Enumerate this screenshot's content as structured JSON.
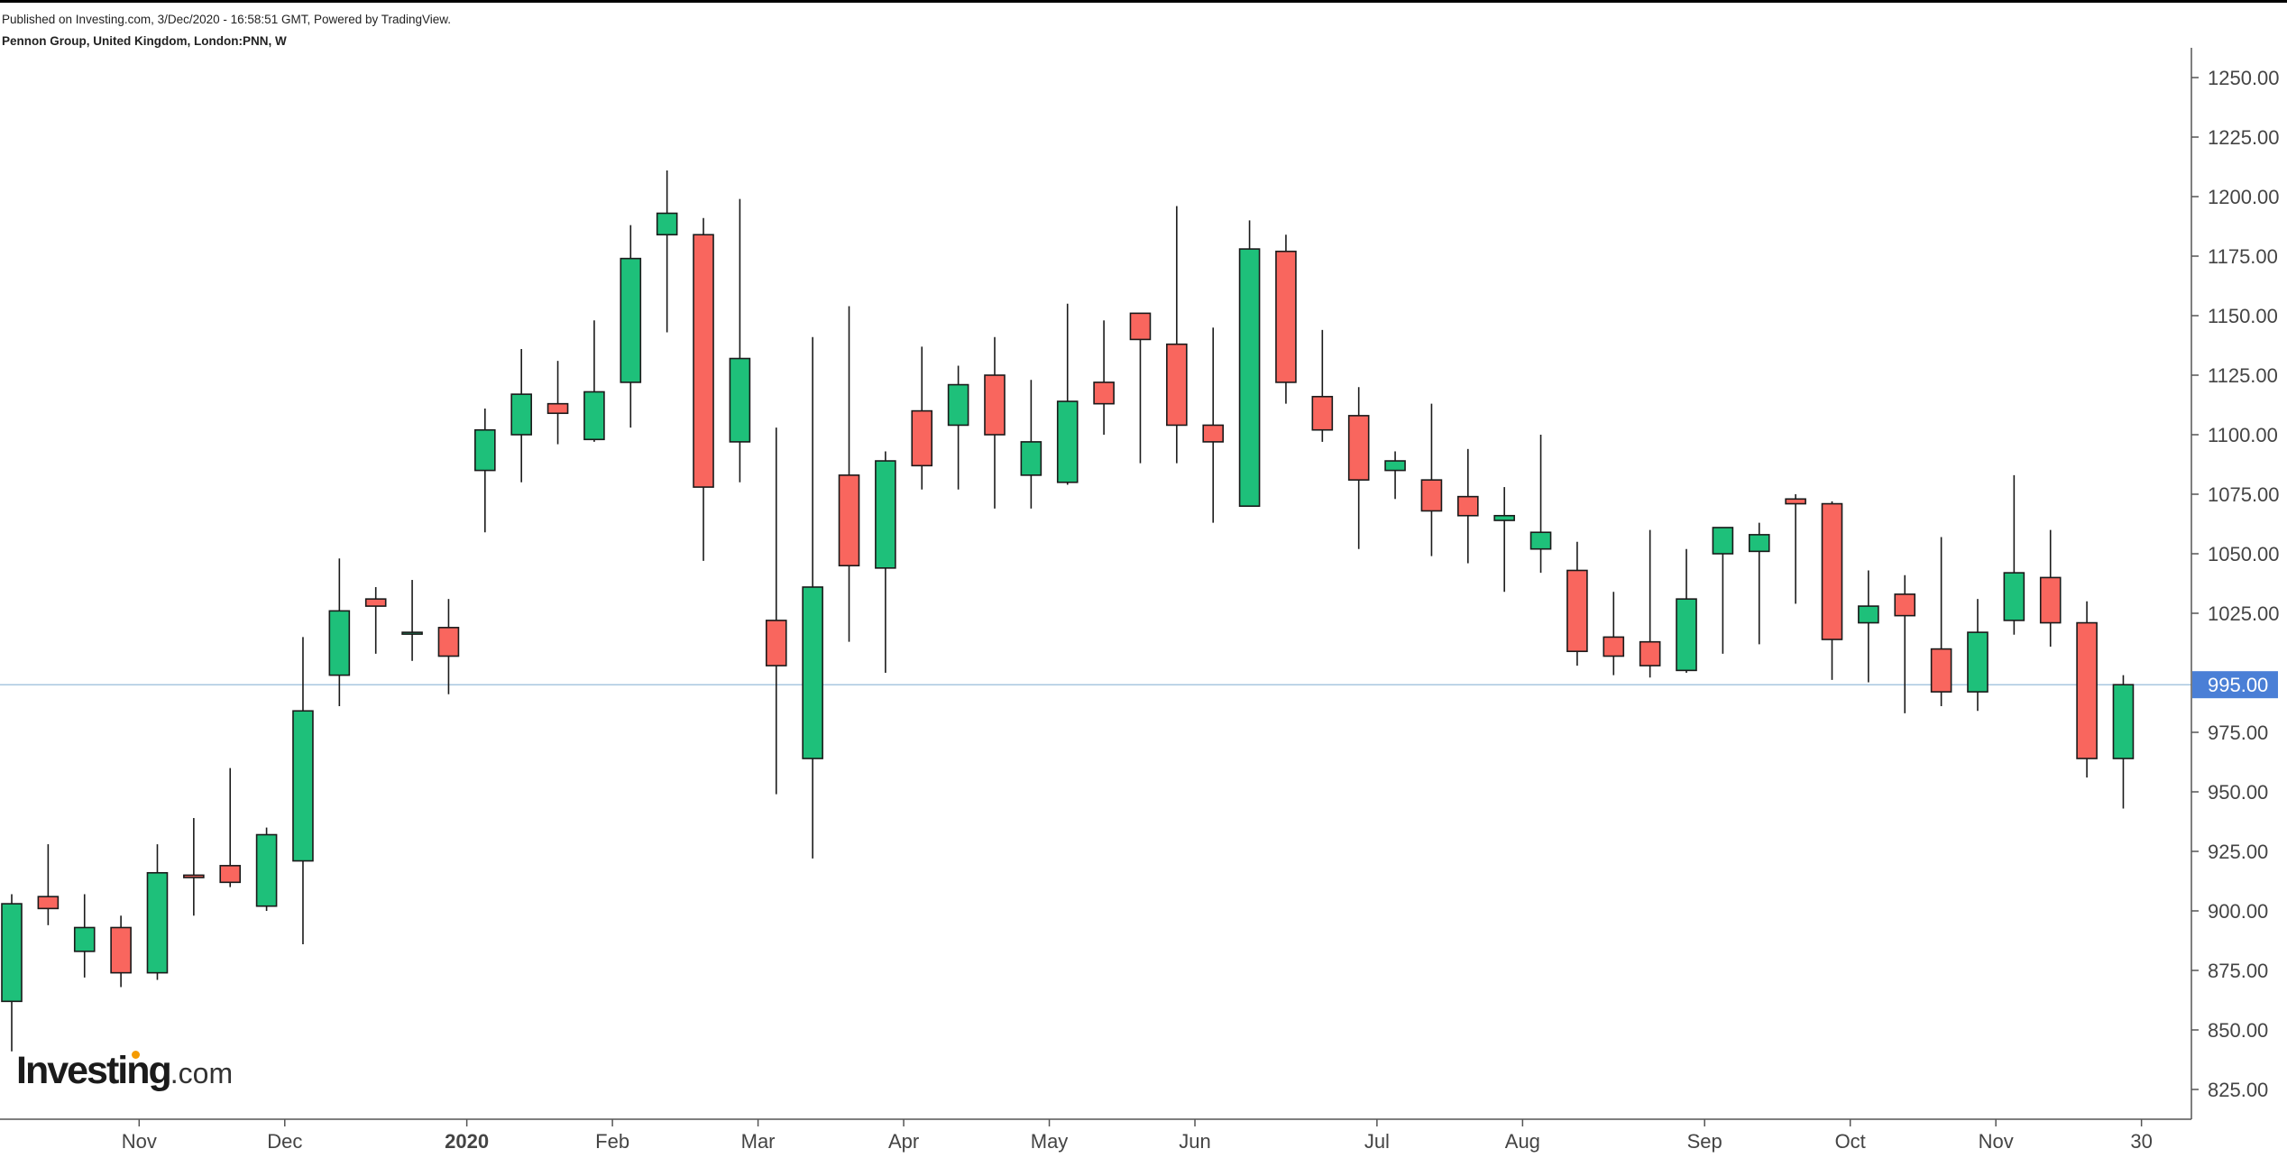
{
  "header": {
    "published": "Published on Investing.com, 3/Dec/2020 - 16:58:51 GMT, Powered by TradingView.",
    "symbol": "Pennon Group, United Kingdom, London:PNN, W"
  },
  "logo": {
    "brand": "Investing",
    "tld": ".com"
  },
  "colors": {
    "up": "#1ec07a",
    "down": "#f9665e",
    "outline": "#1a1a1a",
    "price_line": "#a9c7e0",
    "price_tag": "#4a7fd6"
  },
  "chart_data": {
    "type": "candlestick",
    "interval": "W",
    "ylim": [
      812.5,
      1262.5
    ],
    "y_ticks": [
      "825.00",
      "850.00",
      "875.00",
      "900.00",
      "925.00",
      "950.00",
      "975.00",
      "1025.00",
      "1050.00",
      "1075.00",
      "1100.00",
      "1125.00",
      "1150.00",
      "1175.00",
      "1200.00",
      "1225.00",
      "1250.00"
    ],
    "y_tick_values": [
      825,
      850,
      875,
      900,
      925,
      950,
      975,
      1025,
      1050,
      1075,
      1100,
      1125,
      1150,
      1175,
      1200,
      1225,
      1250
    ],
    "x_labels": [
      {
        "label": "Nov",
        "week": 3.5
      },
      {
        "label": "Dec",
        "week": 7.5
      },
      {
        "label": "2020",
        "week": 12.5
      },
      {
        "label": "Feb",
        "week": 16.5
      },
      {
        "label": "Mar",
        "week": 20.5
      },
      {
        "label": "Apr",
        "week": 24.5
      },
      {
        "label": "May",
        "week": 28.5
      },
      {
        "label": "Jun",
        "week": 32.5
      },
      {
        "label": "Jul",
        "week": 37.5
      },
      {
        "label": "Aug",
        "week": 41.5
      },
      {
        "label": "Sep",
        "week": 46.5
      },
      {
        "label": "Oct",
        "week": 50.5
      },
      {
        "label": "Nov",
        "week": 54.5
      },
      {
        "label": "30",
        "week": 58.5
      }
    ],
    "last_price": 995,
    "last_price_label": "995.00",
    "candles": [
      {
        "o": 862,
        "h": 907,
        "l": 841,
        "c": 903
      },
      {
        "o": 906,
        "h": 928,
        "l": 894,
        "c": 901
      },
      {
        "o": 883,
        "h": 907,
        "l": 872,
        "c": 893
      },
      {
        "o": 893,
        "h": 898,
        "l": 868,
        "c": 874
      },
      {
        "o": 874,
        "h": 928,
        "l": 871,
        "c": 916
      },
      {
        "o": 915,
        "h": 939,
        "l": 898,
        "c": 914
      },
      {
        "o": 919,
        "h": 960,
        "l": 910,
        "c": 912
      },
      {
        "o": 902,
        "h": 935,
        "l": 900,
        "c": 932
      },
      {
        "o": 921,
        "h": 1015,
        "l": 886,
        "c": 984
      },
      {
        "o": 999,
        "h": 1048,
        "l": 986,
        "c": 1026
      },
      {
        "o": 1031,
        "h": 1036,
        "l": 1008,
        "c": 1028
      },
      {
        "o": 1017,
        "h": 1039,
        "l": 1005,
        "c": 1017
      },
      {
        "o": 1019,
        "h": 1031,
        "l": 991,
        "c": 1007
      },
      {
        "o": 1085,
        "h": 1111,
        "l": 1059,
        "c": 1102
      },
      {
        "o": 1100,
        "h": 1136,
        "l": 1080,
        "c": 1117
      },
      {
        "o": 1113,
        "h": 1131,
        "l": 1096,
        "c": 1109
      },
      {
        "o": 1098,
        "h": 1148,
        "l": 1097,
        "c": 1118
      },
      {
        "o": 1122,
        "h": 1188,
        "l": 1103,
        "c": 1174
      },
      {
        "o": 1184,
        "h": 1211,
        "l": 1143,
        "c": 1193
      },
      {
        "o": 1184,
        "h": 1191,
        "l": 1047,
        "c": 1078
      },
      {
        "o": 1097,
        "h": 1199,
        "l": 1080,
        "c": 1132
      },
      {
        "o": 1022,
        "h": 1103,
        "l": 949,
        "c": 1003
      },
      {
        "o": 964,
        "h": 1141,
        "l": 922,
        "c": 1036
      },
      {
        "o": 1083,
        "h": 1154,
        "l": 1013,
        "c": 1045
      },
      {
        "o": 1044,
        "h": 1093,
        "l": 1000,
        "c": 1089
      },
      {
        "o": 1110,
        "h": 1137,
        "l": 1077,
        "c": 1087
      },
      {
        "o": 1104,
        "h": 1129,
        "l": 1077,
        "c": 1121
      },
      {
        "o": 1125,
        "h": 1141,
        "l": 1069,
        "c": 1100
      },
      {
        "o": 1083,
        "h": 1123,
        "l": 1069,
        "c": 1097
      },
      {
        "o": 1080,
        "h": 1155,
        "l": 1079,
        "c": 1114
      },
      {
        "o": 1122,
        "h": 1148,
        "l": 1100,
        "c": 1113
      },
      {
        "o": 1151,
        "h": 1151,
        "l": 1088,
        "c": 1140
      },
      {
        "o": 1138,
        "h": 1196,
        "l": 1088,
        "c": 1104
      },
      {
        "o": 1104,
        "h": 1145,
        "l": 1063,
        "c": 1097
      },
      {
        "o": 1070,
        "h": 1190,
        "l": 1070,
        "c": 1178
      },
      {
        "o": 1177,
        "h": 1184,
        "l": 1113,
        "c": 1122
      },
      {
        "o": 1116,
        "h": 1144,
        "l": 1097,
        "c": 1102
      },
      {
        "o": 1108,
        "h": 1120,
        "l": 1052,
        "c": 1081
      },
      {
        "o": 1085,
        "h": 1093,
        "l": 1073,
        "c": 1089
      },
      {
        "o": 1081,
        "h": 1113,
        "l": 1049,
        "c": 1068
      },
      {
        "o": 1074,
        "h": 1094,
        "l": 1046,
        "c": 1066
      },
      {
        "o": 1064,
        "h": 1078,
        "l": 1034,
        "c": 1066
      },
      {
        "o": 1052,
        "h": 1100,
        "l": 1042,
        "c": 1059
      },
      {
        "o": 1043,
        "h": 1055,
        "l": 1003,
        "c": 1009
      },
      {
        "o": 1015,
        "h": 1034,
        "l": 999,
        "c": 1007
      },
      {
        "o": 1013,
        "h": 1060,
        "l": 998,
        "c": 1003
      },
      {
        "o": 1001,
        "h": 1052,
        "l": 1000,
        "c": 1031
      },
      {
        "o": 1050,
        "h": 1061,
        "l": 1008,
        "c": 1061
      },
      {
        "o": 1051,
        "h": 1063,
        "l": 1012,
        "c": 1058
      },
      {
        "o": 1073,
        "h": 1075,
        "l": 1029,
        "c": 1071
      },
      {
        "o": 1071,
        "h": 1072,
        "l": 997,
        "c": 1014
      },
      {
        "o": 1021,
        "h": 1043,
        "l": 996,
        "c": 1028
      },
      {
        "o": 1033,
        "h": 1041,
        "l": 983,
        "c": 1024
      },
      {
        "o": 1010,
        "h": 1057,
        "l": 986,
        "c": 992
      },
      {
        "o": 992,
        "h": 1031,
        "l": 984,
        "c": 1017
      },
      {
        "o": 1022,
        "h": 1083,
        "l": 1016,
        "c": 1042
      },
      {
        "o": 1040,
        "h": 1060,
        "l": 1011,
        "c": 1021
      },
      {
        "o": 1021,
        "h": 1030,
        "l": 956,
        "c": 964
      },
      {
        "o": 964,
        "h": 999,
        "l": 943,
        "c": 995
      }
    ]
  }
}
